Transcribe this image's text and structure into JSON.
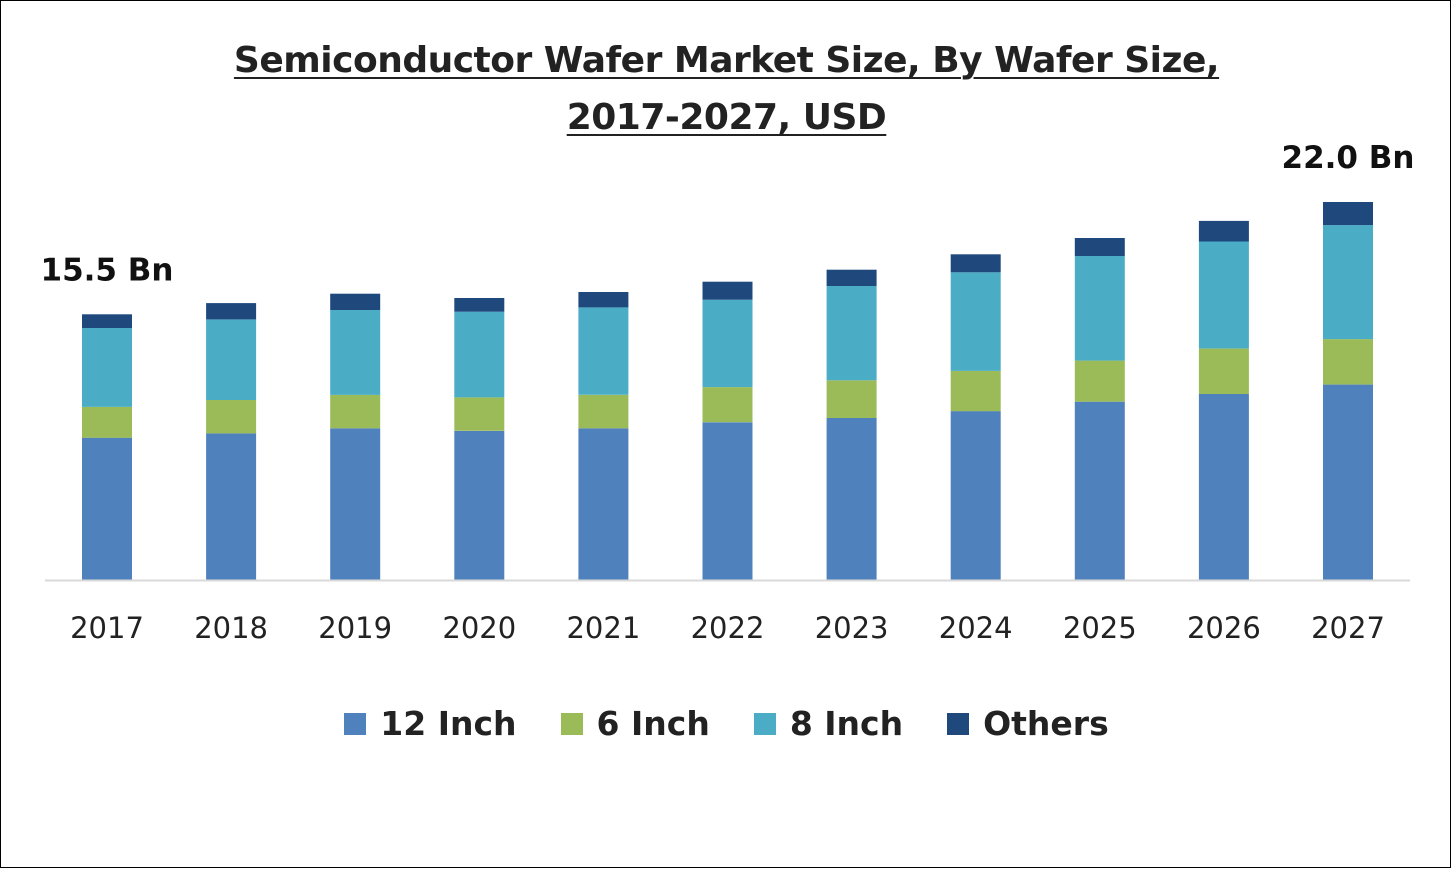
{
  "chart_data": {
    "type": "bar",
    "stacked": true,
    "title": "Semiconductor Wafer Market Size, By Wafer Size,",
    "subtitle": "2017-2027, USD",
    "categories": [
      "2017",
      "2018",
      "2019",
      "2020",
      "2021",
      "2022",
      "2023",
      "2024",
      "2025",
      "2026",
      "2027"
    ],
    "series": [
      {
        "name": "12 Inch",
        "color": "#4F81BD",
        "values": [
          8.3,
          8.55,
          8.85,
          8.7,
          8.85,
          9.2,
          9.45,
          9.85,
          10.4,
          10.85,
          11.4
        ]
      },
      {
        "name": "6 Inch",
        "color": "#9BBB59",
        "values": [
          1.8,
          1.95,
          1.95,
          1.95,
          1.95,
          2.05,
          2.2,
          2.35,
          2.4,
          2.65,
          2.65
        ]
      },
      {
        "name": "8 Inch",
        "color": "#4BACC6",
        "values": [
          4.6,
          4.7,
          4.95,
          5.0,
          5.1,
          5.1,
          5.5,
          5.75,
          6.1,
          6.25,
          6.65
        ]
      },
      {
        "name": "Others",
        "color": "#1F497D",
        "values": [
          0.8,
          0.95,
          0.95,
          0.8,
          0.9,
          1.05,
          0.95,
          1.05,
          1.05,
          1.2,
          1.35
        ]
      }
    ],
    "annotations": [
      {
        "category": "2017",
        "text": "15.5 Bn"
      },
      {
        "category": "2027",
        "text": "22.0 Bn"
      }
    ],
    "ylim": [
      0,
      24.5
    ],
    "xlabel": "",
    "ylabel": "",
    "grid": false,
    "legend": "bottom"
  }
}
